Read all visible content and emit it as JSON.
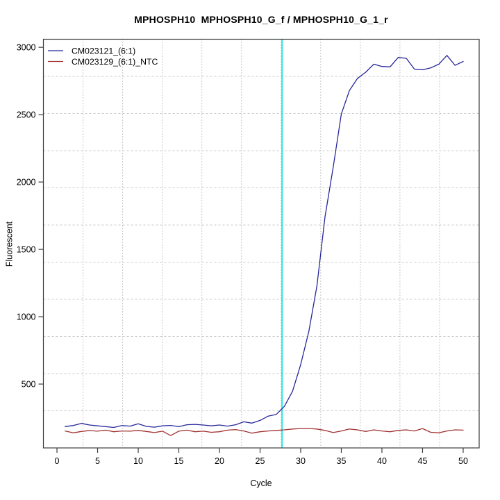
{
  "chart_data": {
    "type": "line",
    "title": "MPHOSPH10  MPHOSPH10_G_f / MPHOSPH10_G_1_r",
    "xlabel": "Cycle",
    "ylabel": "Fluorescent",
    "x": [
      1,
      2,
      3,
      4,
      5,
      6,
      7,
      8,
      9,
      10,
      11,
      12,
      13,
      14,
      15,
      16,
      17,
      18,
      19,
      20,
      21,
      22,
      23,
      24,
      25,
      26,
      27,
      28,
      29,
      30,
      31,
      32,
      33,
      34,
      35,
      36,
      37,
      38,
      39,
      40,
      41,
      42,
      43,
      44,
      45,
      46,
      47,
      48,
      49,
      50
    ],
    "series": [
      {
        "name": "CM023121_(6:1)",
        "color": "#26269a",
        "values": [
          185,
          192,
          208,
          196,
          190,
          184,
          178,
          192,
          188,
          205,
          186,
          180,
          190,
          193,
          184,
          198,
          201,
          196,
          190,
          196,
          188,
          198,
          220,
          210,
          230,
          262,
          275,
          335,
          447,
          645,
          890,
          1230,
          1745,
          2110,
          2505,
          2680,
          2770,
          2815,
          2875,
          2858,
          2855,
          2925,
          2918,
          2838,
          2833,
          2847,
          2875,
          2940,
          2866,
          2895
        ]
      },
      {
        "name": "CM023129_(6:1)_NTC",
        "color": "#a03030",
        "values": [
          152,
          138,
          148,
          155,
          150,
          158,
          146,
          152,
          150,
          156,
          148,
          140,
          150,
          118,
          150,
          158,
          146,
          150,
          142,
          146,
          158,
          162,
          152,
          136,
          146,
          152,
          156,
          160,
          166,
          170,
          170,
          166,
          156,
          140,
          152,
          166,
          160,
          148,
          160,
          152,
          146,
          156,
          160,
          152,
          170,
          142,
          138,
          152,
          160,
          158
        ]
      }
    ],
    "threshold_line": {
      "x": 27.7,
      "color": "#00e0e0",
      "label": "threshold-cycle"
    },
    "axes": {
      "xticks": [
        0,
        5,
        10,
        15,
        20,
        25,
        30,
        35,
        40,
        45,
        50
      ],
      "yticks": [
        500,
        1000,
        1500,
        2000,
        2500,
        3000
      ],
      "xlim": [
        -1.67,
        51.97
      ],
      "ylim": [
        26,
        3060
      ],
      "axis_color": "#3c3c3c"
    },
    "grid": {
      "on": true,
      "nx": 11,
      "ny": 11,
      "v_style": "dotted",
      "v_color": "#909090",
      "h_style": "dashed",
      "h_color": "#c9c9c9"
    },
    "legend": {
      "position": "top-left"
    }
  }
}
